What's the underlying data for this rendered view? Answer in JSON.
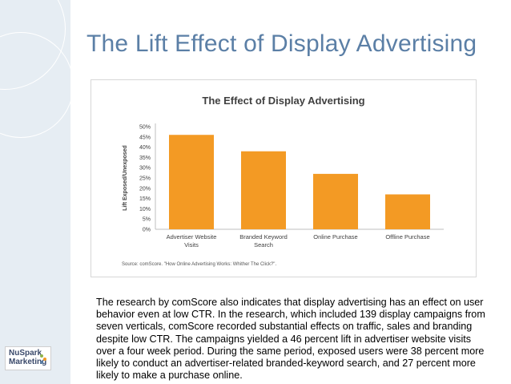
{
  "slide": {
    "title": "The Lift Effect of Display Advertising",
    "body": "The research by comScore also indicates that display advertising has an effect on user behavior even at low CTR. In the research, which included 139 display campaigns from seven verticals, comScore recorded substantial effects on traffic, sales and branding despite low CTR. The campaigns yielded a 46 percent lift in advertiser website visits over a four week period. During the same period, exposed users were 38 percent more likely to conduct an advertiser-related branded-keyword search, and 27 percent more likely to make a purchase online.",
    "logo_line1": "NuSpark",
    "logo_line2": "Marketing"
  },
  "chart_data": {
    "type": "bar",
    "title": "The Effect of Display Advertising",
    "ylabel": "Lift Exposed/Unexposed",
    "xlabel": "",
    "categories": [
      [
        "Advertiser Website",
        "Visits"
      ],
      [
        "Branded Keyword",
        "Search"
      ],
      [
        "Online Purchase"
      ],
      [
        "Offline Purchase"
      ]
    ],
    "values": [
      46,
      38,
      27,
      17
    ],
    "ylim": [
      0,
      50
    ],
    "yticks": [
      "0%",
      "5%",
      "10%",
      "15%",
      "20%",
      "25%",
      "30%",
      "35%",
      "40%",
      "45%",
      "50%"
    ],
    "source": "Source: comScore. \"How Online Advertising Works: Whither The Click?\".",
    "bar_color": "#f39a24",
    "grid": false
  }
}
